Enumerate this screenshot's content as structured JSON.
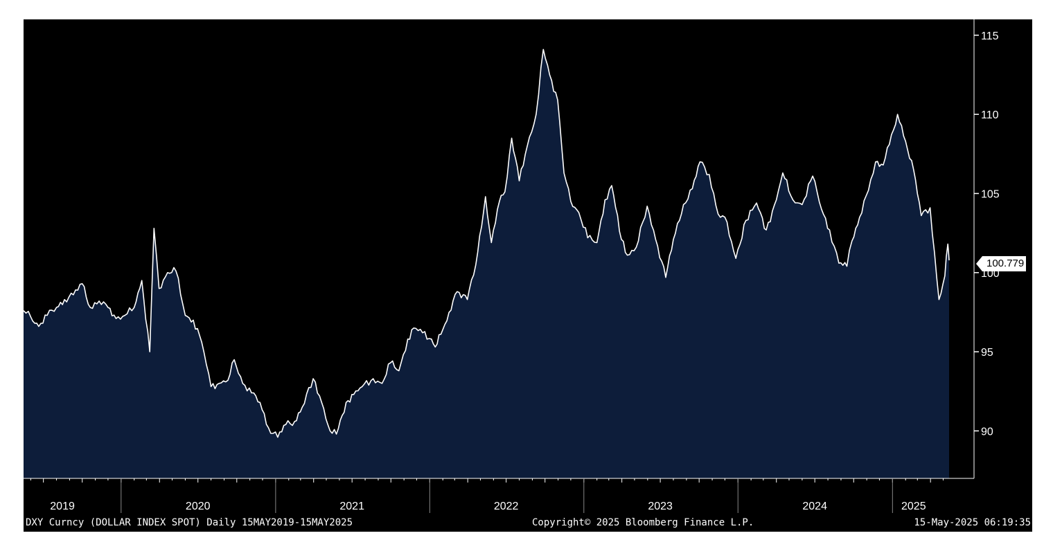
{
  "chart_data": {
    "type": "area",
    "title": "",
    "xlabel": "",
    "ylabel": "",
    "x_range": [
      "2019-05-15",
      "2025-05-15"
    ],
    "ylim": [
      87,
      116
    ],
    "y_ticks": [
      90,
      95,
      100,
      105,
      110,
      115
    ],
    "y_tick_labels": [
      "90",
      "95",
      "100",
      "105",
      "110",
      "115"
    ],
    "year_labels": [
      "2019",
      "2020",
      "2021",
      "2022",
      "2023",
      "2024",
      "2025"
    ],
    "year_label_dates": [
      "2019-08-15",
      "2020-07-01",
      "2021-07-01",
      "2022-07-01",
      "2023-07-01",
      "2024-07-01",
      "2025-02-20"
    ],
    "year_boundaries": [
      "2020-01-01",
      "2021-01-01",
      "2022-01-01",
      "2023-01-01",
      "2024-01-01",
      "2025-01-01"
    ],
    "last_value_label": "100.779",
    "series": [
      {
        "x": [
          "2019-05-15",
          "2019-06-01",
          "2019-06-20",
          "2019-07-10",
          "2019-08-01",
          "2019-08-20",
          "2019-09-10",
          "2019-10-01",
          "2019-10-20",
          "2019-11-10",
          "2019-12-01",
          "2019-12-20",
          "2020-01-10",
          "2020-02-01",
          "2020-02-19",
          "2020-03-09",
          "2020-03-19",
          "2020-03-31",
          "2020-04-20",
          "2020-05-10",
          "2020-06-01",
          "2020-06-20",
          "2020-07-10",
          "2020-08-01",
          "2020-08-20",
          "2020-09-10",
          "2020-09-25",
          "2020-10-15",
          "2020-11-05",
          "2020-11-25",
          "2020-12-15",
          "2021-01-06",
          "2021-01-25",
          "2021-02-15",
          "2021-03-05",
          "2021-03-31",
          "2021-04-20",
          "2021-05-10",
          "2021-05-25",
          "2021-06-17",
          "2021-07-05",
          "2021-07-25",
          "2021-08-20",
          "2021-09-10",
          "2021-09-30",
          "2021-10-20",
          "2021-11-10",
          "2021-11-24",
          "2021-12-15",
          "2022-01-05",
          "2022-01-14",
          "2022-02-01",
          "2022-03-07",
          "2022-03-31",
          "2022-04-20",
          "2022-05-13",
          "2022-05-27",
          "2022-06-15",
          "2022-06-28",
          "2022-07-14",
          "2022-08-01",
          "2022-08-20",
          "2022-09-10",
          "2022-09-27",
          "2022-10-12",
          "2022-10-31",
          "2022-11-15",
          "2022-12-01",
          "2022-12-20",
          "2023-01-10",
          "2023-02-01",
          "2023-02-20",
          "2023-03-08",
          "2023-03-31",
          "2023-04-14",
          "2023-05-05",
          "2023-05-31",
          "2023-06-20",
          "2023-07-14",
          "2023-08-01",
          "2023-08-25",
          "2023-09-15",
          "2023-10-03",
          "2023-10-25",
          "2023-11-15",
          "2023-12-01",
          "2023-12-27",
          "2024-01-20",
          "2024-02-14",
          "2024-03-08",
          "2024-04-01",
          "2024-04-16",
          "2024-05-10",
          "2024-06-01",
          "2024-06-26",
          "2024-07-17",
          "2024-08-05",
          "2024-08-27",
          "2024-09-15",
          "2024-09-27",
          "2024-10-15",
          "2024-11-05",
          "2024-11-22",
          "2024-12-10",
          "2025-01-13",
          "2025-02-01",
          "2025-02-20",
          "2025-03-10",
          "2025-03-31",
          "2025-04-21",
          "2025-05-05",
          "2025-05-12",
          "2025-05-15"
        ],
        "y": [
          97.6,
          97.2,
          96.6,
          97.3,
          97.8,
          98.3,
          98.6,
          99.3,
          97.8,
          98.2,
          97.8,
          97.1,
          97.3,
          97.8,
          99.5,
          95.0,
          102.8,
          99.0,
          100.0,
          100.1,
          97.3,
          97.0,
          95.6,
          92.8,
          93.0,
          93.2,
          94.5,
          93.0,
          92.4,
          91.8,
          90.2,
          89.6,
          90.4,
          90.6,
          91.5,
          93.3,
          91.8,
          90.0,
          89.8,
          91.8,
          92.3,
          92.8,
          93.3,
          93.0,
          94.3,
          93.8,
          95.8,
          96.5,
          96.2,
          95.8,
          95.3,
          96.4,
          98.8,
          98.3,
          100.5,
          104.8,
          101.9,
          104.5,
          105.1,
          108.5,
          105.8,
          108.0,
          110.0,
          114.1,
          112.5,
          110.9,
          106.3,
          104.5,
          103.8,
          102.2,
          101.9,
          104.6,
          105.5,
          102.1,
          101.1,
          101.6,
          104.2,
          102.1,
          99.7,
          102.1,
          104.3,
          105.3,
          107.0,
          106.2,
          103.7,
          103.5,
          100.9,
          103.3,
          104.4,
          102.7,
          104.6,
          106.3,
          104.6,
          104.3,
          106.1,
          104.0,
          102.7,
          100.6,
          100.4,
          102.0,
          103.5,
          105.2,
          107.0,
          106.8,
          110.0,
          108.3,
          106.5,
          103.6,
          104.1,
          98.3,
          99.8,
          101.8,
          100.779
        ]
      }
    ]
  },
  "footer": {
    "left": "DXY Curncy (DOLLAR INDEX SPOT)  Daily 15MAY2019-15MAY2025",
    "center": "Copyright© 2025 Bloomberg Finance L.P.",
    "right": "15-May-2025 06:19:35"
  },
  "colors": {
    "background": "#000000",
    "area_fill": "#0d1d3a",
    "line": "#ffffff",
    "axis": "#ffffff"
  }
}
